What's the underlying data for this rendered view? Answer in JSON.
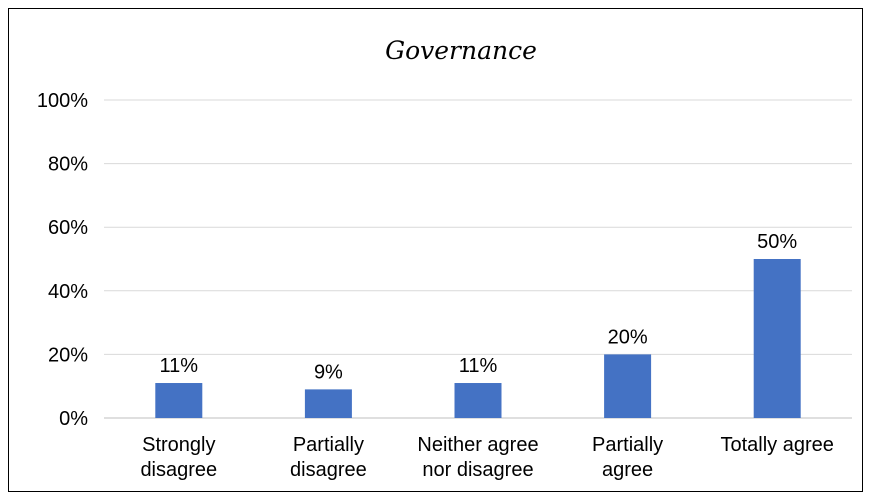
{
  "chart_data": {
    "type": "bar",
    "title": "Governance",
    "xlabel": "",
    "ylabel": "",
    "categories": [
      [
        "Strongly",
        "disagree"
      ],
      [
        "Partially",
        "disagree"
      ],
      [
        "Neither agree",
        "nor disagree"
      ],
      [
        "Partially",
        "agree"
      ],
      [
        "Totally agree"
      ]
    ],
    "values": [
      11,
      9,
      11,
      20,
      50
    ],
    "value_labels": [
      "11%",
      "9%",
      "11%",
      "20%",
      "50%"
    ],
    "ylim": [
      0,
      100
    ],
    "yticks": [
      0,
      20,
      40,
      60,
      80,
      100
    ],
    "ytick_labels": [
      "0%",
      "20%",
      "40%",
      "60%",
      "80%",
      "100%"
    ],
    "grid": true,
    "legend": "none",
    "colors": {
      "bar": "#4472C4",
      "grid": "#D9D9D9",
      "axis": "#BFBFBF"
    }
  }
}
